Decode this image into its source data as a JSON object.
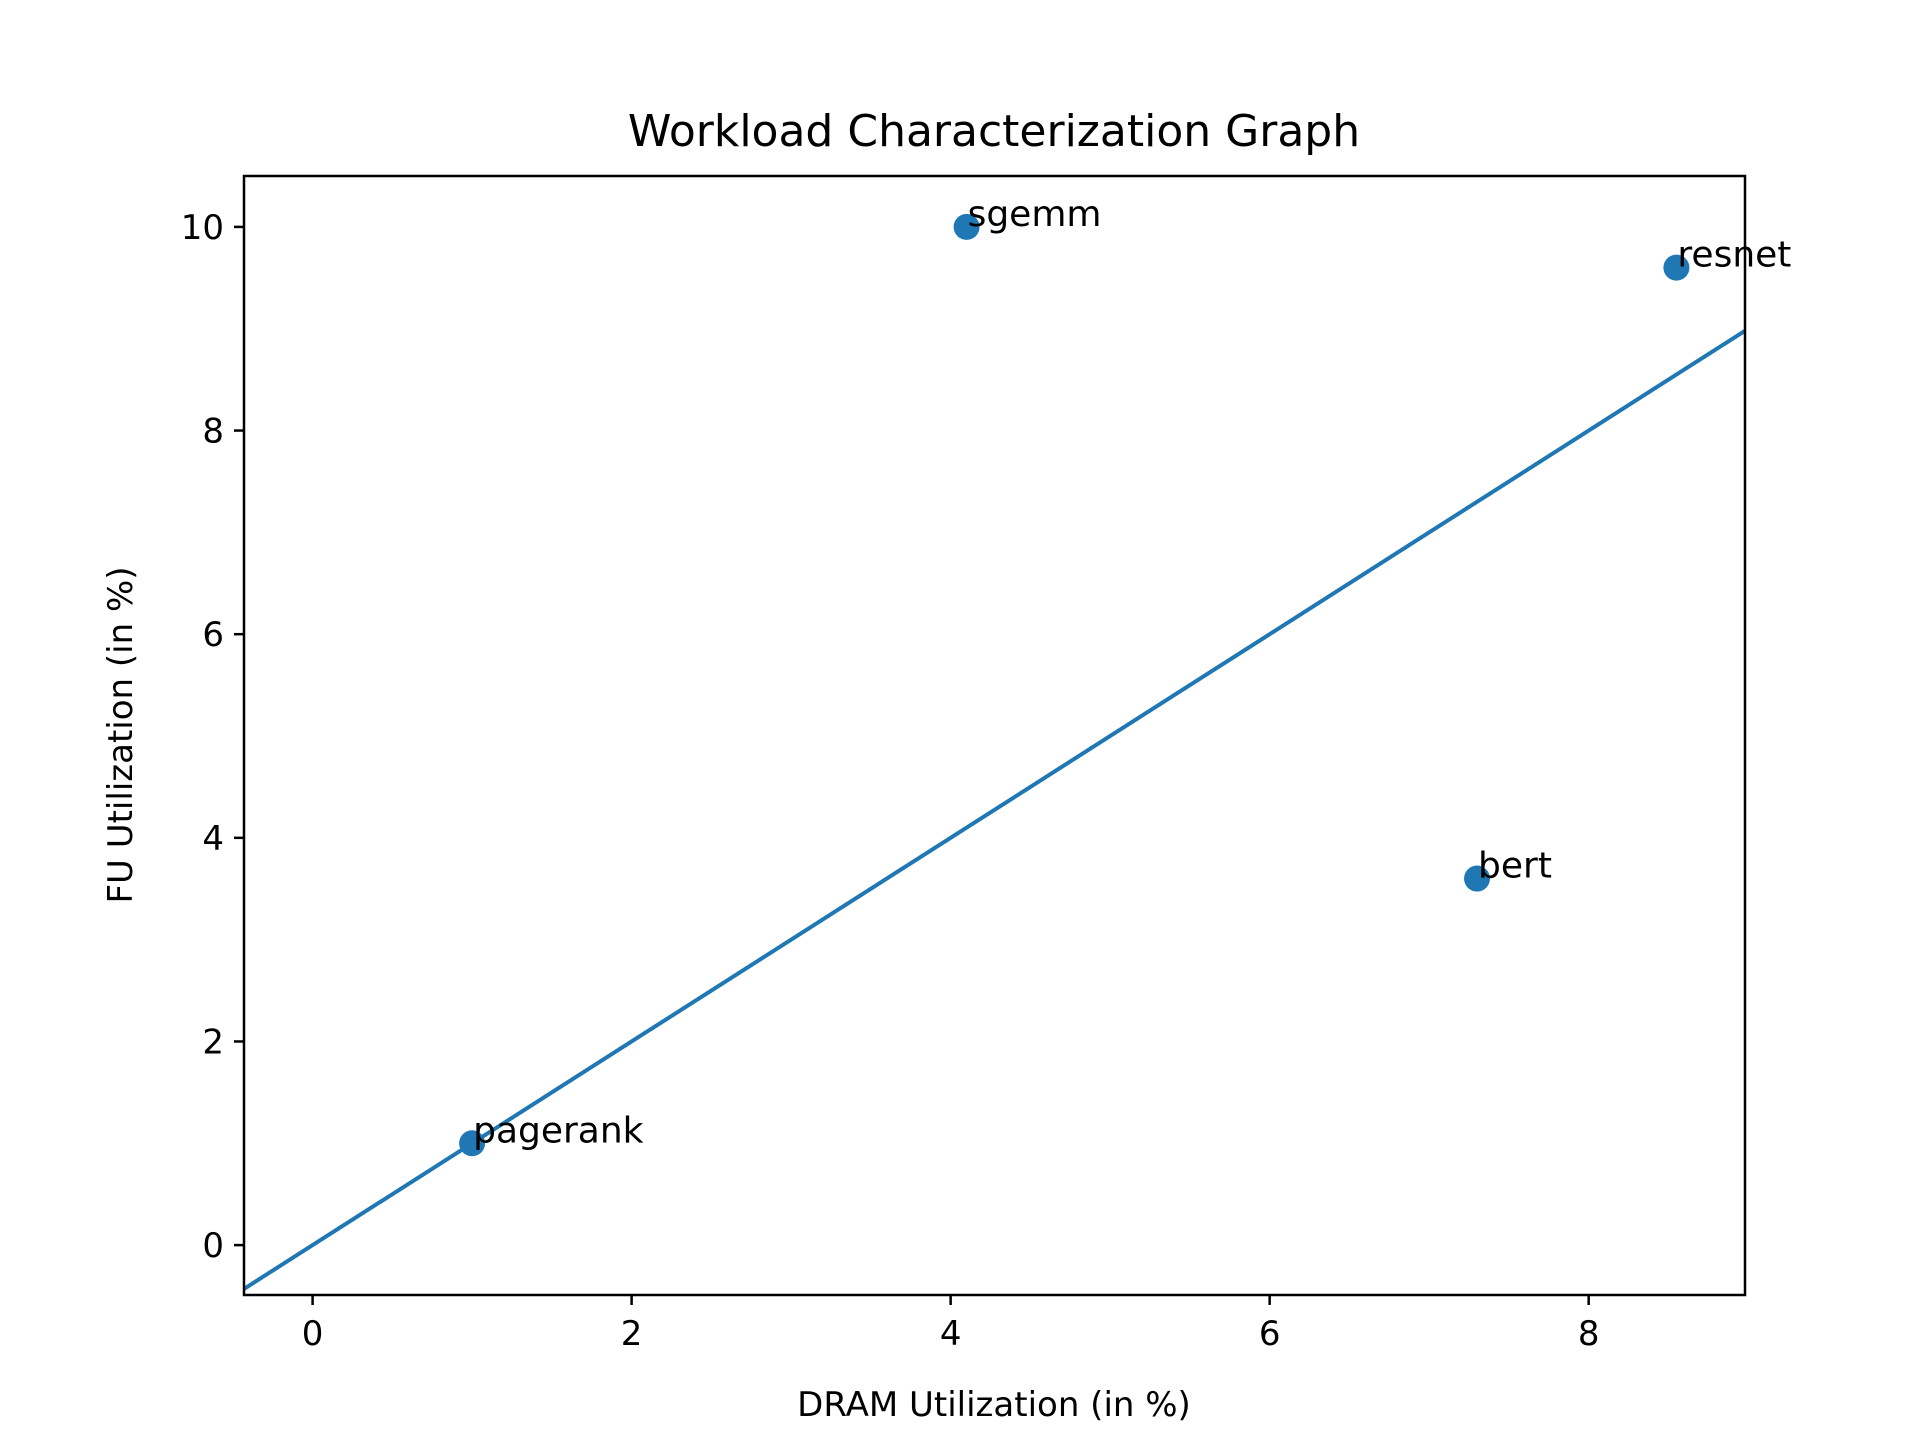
{
  "chart_data": {
    "type": "scatter",
    "title": "Workload Characterization Graph",
    "xlabel": "DRAM Utilization (in %)",
    "ylabel": "FU Utilization (in %)",
    "xlim": [
      -0.43,
      8.98
    ],
    "ylim": [
      -0.49,
      10.5
    ],
    "xticks": [
      0,
      2,
      4,
      6,
      8
    ],
    "yticks": [
      0,
      2,
      4,
      6,
      8,
      10
    ],
    "grid": false,
    "points": [
      {
        "label": "pagerank",
        "x": 1.0,
        "y": 1.0
      },
      {
        "label": "sgemm",
        "x": 4.1,
        "y": 10.0
      },
      {
        "label": "bert",
        "x": 7.3,
        "y": 3.6
      },
      {
        "label": "resnet",
        "x": 8.55,
        "y": 9.6
      }
    ],
    "line": {
      "x": [
        -0.43,
        8.98
      ],
      "y": [
        -0.43,
        8.98
      ]
    },
    "color": "#1f77b4"
  }
}
